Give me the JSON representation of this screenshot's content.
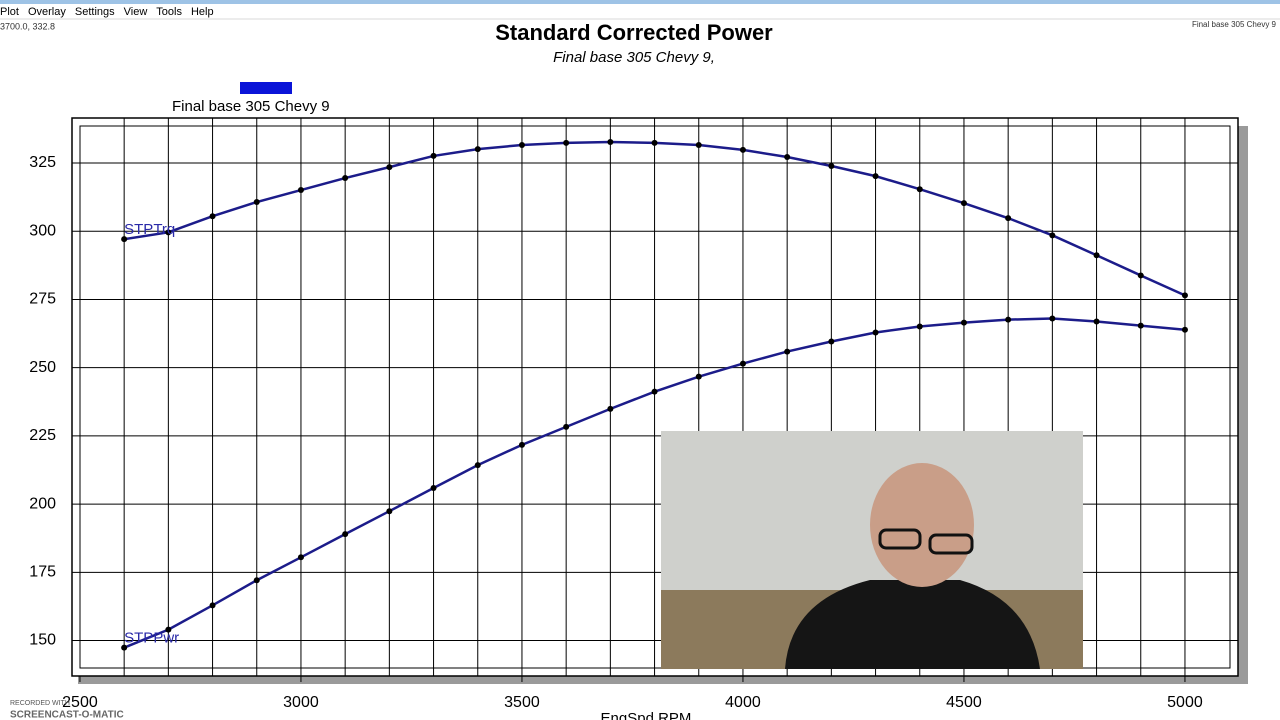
{
  "menu": [
    "Plot",
    "Overlay",
    "Settings",
    "View",
    "Tools",
    "Help"
  ],
  "cursor_readout": "3700.0, 332.8",
  "corner_label": "Final base 305 Chevy 9",
  "watermark": [
    "RECORDED WITH",
    "SCREENCAST-O-MATIC"
  ],
  "chart_data": {
    "type": "line",
    "title": "Standard Corrected Power",
    "subtitle": "Final base 305 Chevy 9,",
    "legend_entry": "Final base 305 Chevy 9",
    "legend_color": "#0a14d8",
    "x_label": "EngSpd RPM",
    "x": [
      2600,
      2700,
      2800,
      2900,
      3000,
      3100,
      3200,
      3300,
      3400,
      3500,
      3600,
      3700,
      3800,
      3900,
      4000,
      4100,
      4200,
      4300,
      4400,
      4500,
      4600,
      4700,
      4800,
      4900,
      5000
    ],
    "series": [
      {
        "name": "STPTrq",
        "color": "#1c1c8a",
        "values": [
          297.1,
          299.6,
          305.5,
          310.7,
          315.1,
          319.5,
          323.5,
          327.6,
          330.1,
          331.6,
          332.4,
          332.7,
          332.4,
          331.6,
          329.8,
          327.2,
          323.9,
          320.2,
          315.4,
          310.3,
          304.8,
          298.5,
          291.2,
          283.8,
          276.5
        ]
      },
      {
        "name": "STPPwr",
        "color": "#1c1c8a",
        "values": [
          147.4,
          154.0,
          162.9,
          172.1,
          180.5,
          189.0,
          197.4,
          205.9,
          214.3,
          221.7,
          228.3,
          234.9,
          241.2,
          246.7,
          251.5,
          255.9,
          259.6,
          262.9,
          265.1,
          266.5,
          267.6,
          268.0,
          266.9,
          265.4,
          263.9
        ]
      }
    ],
    "xlim": [
      2482,
      5120
    ],
    "xticks": [
      2500,
      3000,
      3500,
      4000,
      4500,
      5000
    ],
    "ylim": [
      137,
      341.5
    ],
    "yticks": [
      150,
      175,
      200,
      225,
      250,
      275,
      300,
      325
    ],
    "grid": true
  }
}
